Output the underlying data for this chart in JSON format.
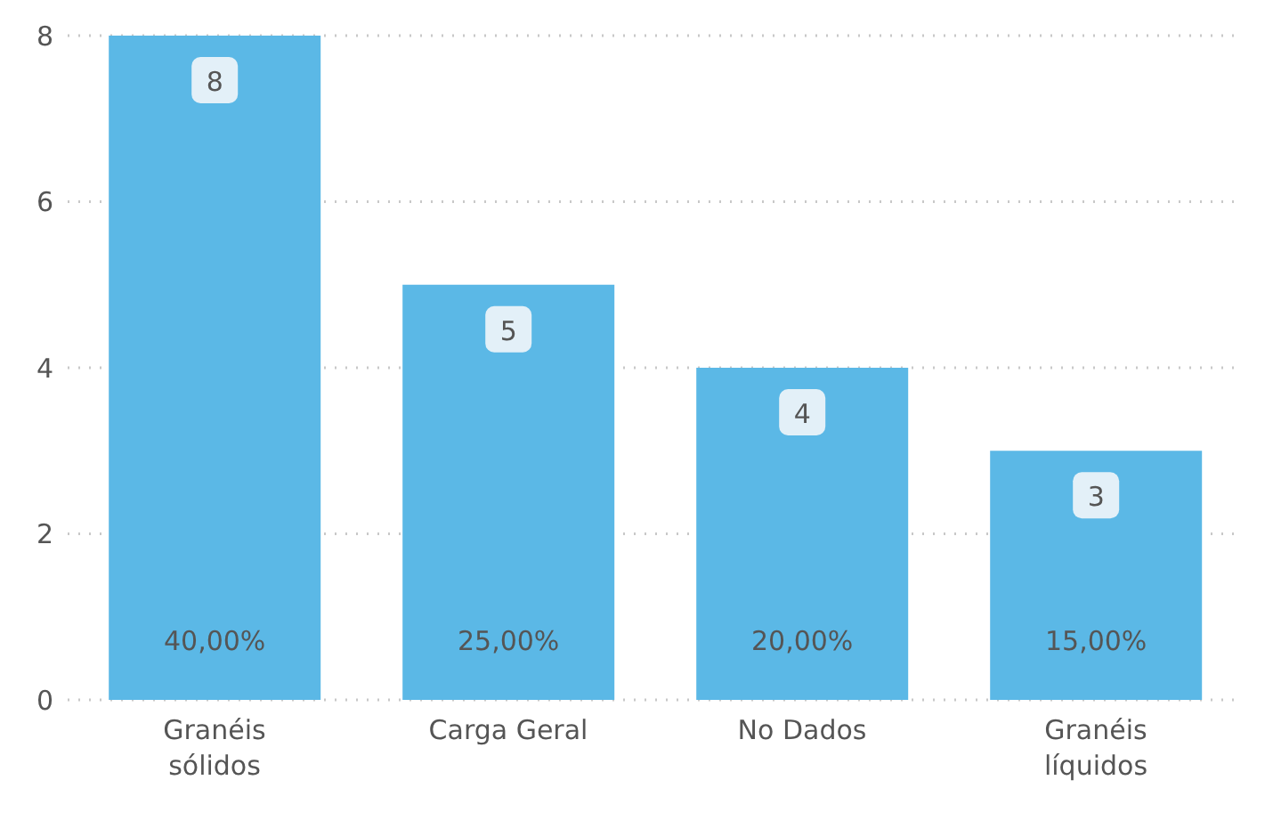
{
  "chart_data": {
    "type": "bar",
    "categories": [
      "Granéis sólidos",
      "Carga Geral",
      "No Dados",
      "Granéis líquidos"
    ],
    "values": [
      8,
      5,
      4,
      3
    ],
    "color": "#5bb8e6",
    "value_labels": [
      "8",
      "5",
      "4",
      "3"
    ],
    "ylim": [
      0,
      8
    ],
    "yticks": [
      0,
      2,
      4,
      6,
      8
    ],
    "grid": "y",
    "annotations": [
      "40,00%",
      "25,00%",
      "20,00%",
      "15,00%"
    ]
  }
}
